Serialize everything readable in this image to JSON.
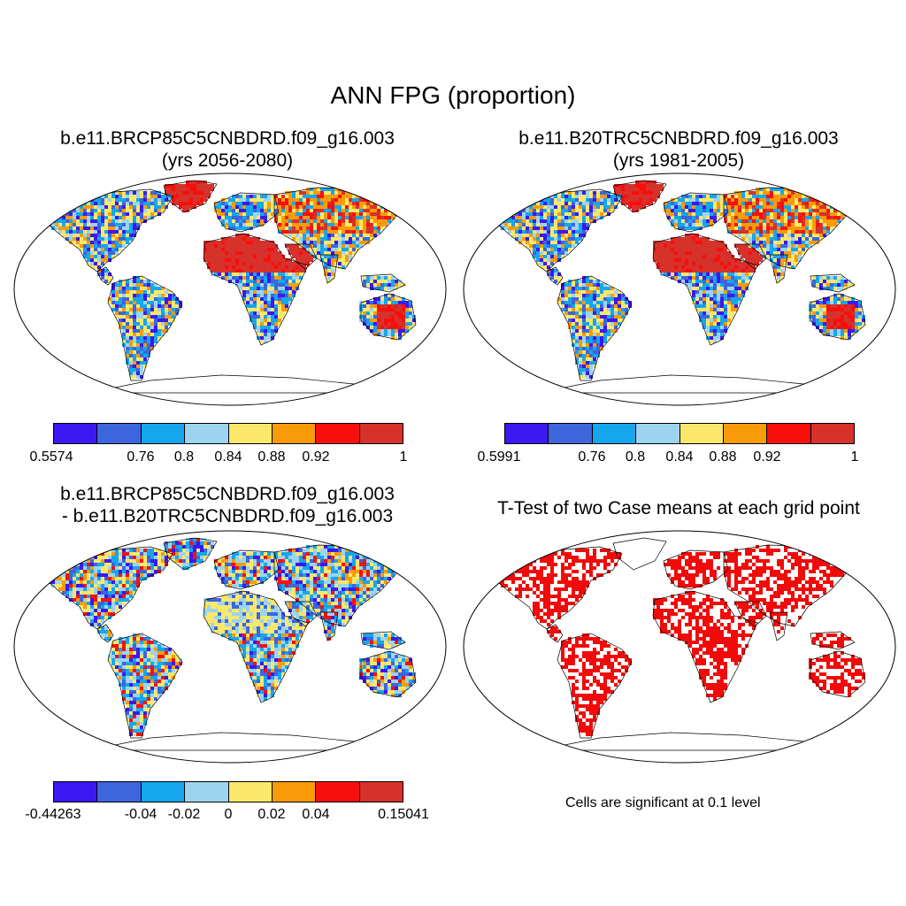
{
  "figure": {
    "title": "ANN FPG (proportion)"
  },
  "panels": {
    "case1": {
      "title_line1": "b.e11.BRCP85C5CNBDRD.f09_g16.003",
      "title_line2": "(yrs 2056-2080)"
    },
    "case2": {
      "title_line1": "b.e11.B20TRC5CNBDRD.f09_g16.003",
      "title_line2": "(yrs 1981-2005)"
    },
    "diff": {
      "title_line1": "b.e11.BRCP85C5CNBDRD.f09_g16.003",
      "title_line2": "- b.e11.B20TRC5CNBDRD.f09_g16.003"
    },
    "ttest": {
      "title_line1": "T-Test of two Case means at each grid point",
      "note": "Cells are significant at 0.1 level"
    }
  },
  "colorbars": {
    "case1": {
      "labels": [
        "0.5574",
        "0.76",
        "0.8",
        "0.84",
        "0.88",
        "0.92",
        "1"
      ]
    },
    "case2": {
      "labels": [
        "0.5991",
        "0.76",
        "0.8",
        "0.84",
        "0.88",
        "0.92",
        "1"
      ]
    },
    "diff": {
      "labels": [
        "-0.44263",
        "-0.04",
        "-0.02",
        "0",
        "0.02",
        "0.04",
        "0.15041"
      ]
    }
  },
  "colors": {
    "swatches": [
      "#3b18f2",
      "#3d65dc",
      "#15a6ee",
      "#9cd4ef",
      "#fbe86a",
      "#f99b09",
      "#f80f0c",
      "#d7312b"
    ],
    "significant": "#f20a0a",
    "land_outline": "#000000"
  }
}
